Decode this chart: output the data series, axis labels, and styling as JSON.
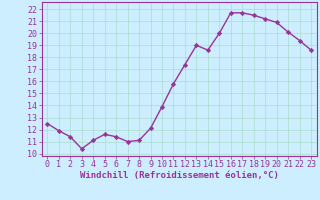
{
  "x": [
    0,
    1,
    2,
    3,
    4,
    5,
    6,
    7,
    8,
    9,
    10,
    11,
    12,
    13,
    14,
    15,
    16,
    17,
    18,
    19,
    20,
    21,
    22,
    23
  ],
  "y": [
    12.5,
    11.9,
    11.4,
    10.4,
    11.1,
    11.6,
    11.4,
    11.0,
    11.1,
    12.1,
    13.9,
    15.8,
    17.4,
    19.0,
    18.6,
    20.0,
    21.7,
    21.7,
    21.5,
    21.2,
    20.9,
    20.1,
    19.4,
    18.6
  ],
  "line_color": "#993399",
  "marker": "D",
  "marker_size": 2.2,
  "bg_color": "#cceeff",
  "grid_color": "#aaddcc",
  "xlabel": "Windchill (Refroidissement éolien,°C)",
  "ylim": [
    9.8,
    22.6
  ],
  "xlim": [
    -0.5,
    23.5
  ],
  "yticks": [
    10,
    11,
    12,
    13,
    14,
    15,
    16,
    17,
    18,
    19,
    20,
    21,
    22
  ],
  "xticks": [
    0,
    1,
    2,
    3,
    4,
    5,
    6,
    7,
    8,
    9,
    10,
    11,
    12,
    13,
    14,
    15,
    16,
    17,
    18,
    19,
    20,
    21,
    22,
    23
  ],
  "xlabel_fontsize": 6.5,
  "tick_fontsize": 6.0,
  "line_width": 1.0
}
